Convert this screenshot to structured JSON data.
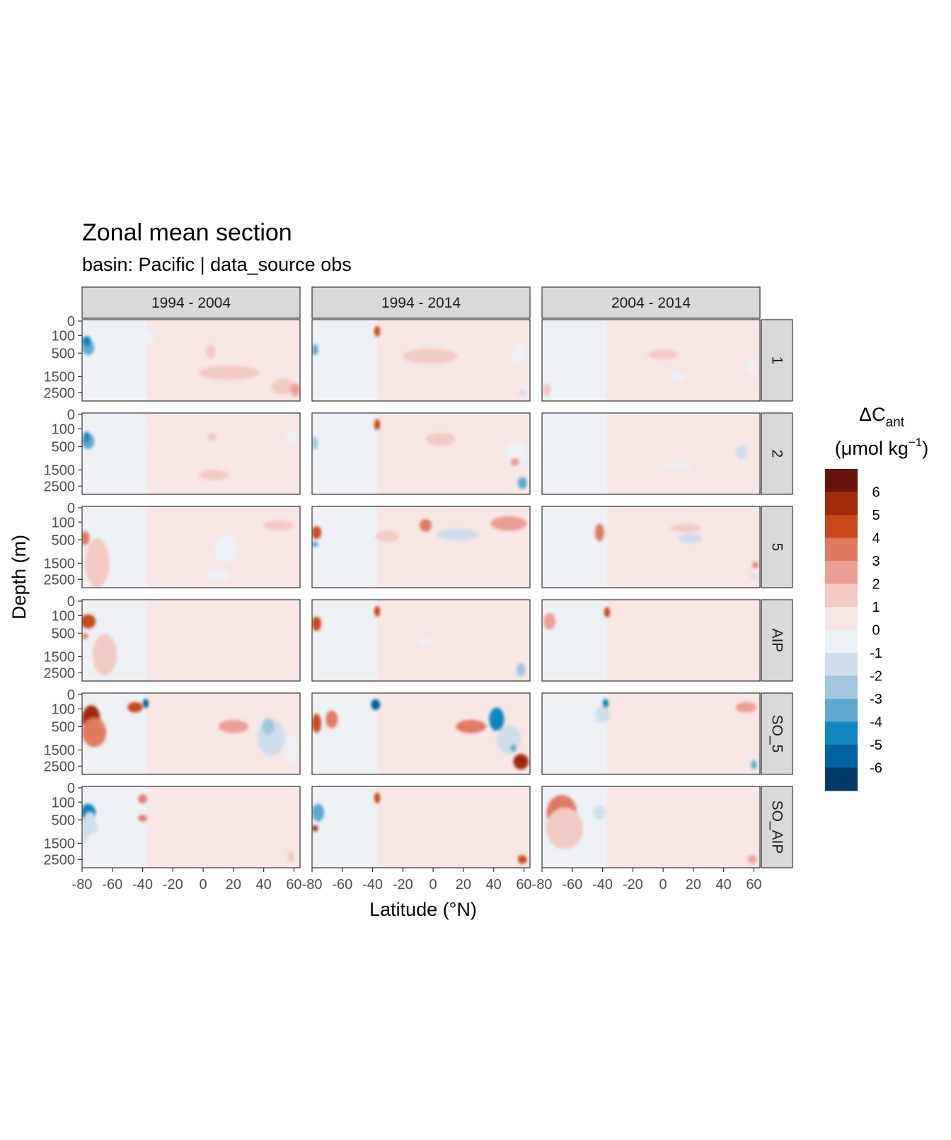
{
  "chart_data": {
    "type": "heatmap",
    "title": "Zonal mean section",
    "subtitle": "basin: Pacific | data_source obs",
    "xlabel": "Latitude (°N)",
    "ylabel": "Depth (m)",
    "x_ticks": [
      "-80",
      "-60",
      "-40",
      "-20",
      "0",
      "20",
      "40",
      "60"
    ],
    "x_tick_values": [
      -80,
      -60,
      -40,
      -20,
      0,
      20,
      40,
      60
    ],
    "xlim": [
      -80,
      64
    ],
    "y_ticks": [
      "0",
      "100",
      "500",
      "1500",
      "2500"
    ],
    "y_tick_values": [
      0,
      100,
      500,
      1500,
      2500
    ],
    "ylim": [
      0,
      3000
    ],
    "y_scale": "square-root, reversed",
    "columns": [
      "1994 - 2004",
      "1994 - 2014",
      "2004 - 2014"
    ],
    "rows": [
      "1",
      "2",
      "5",
      "AIP",
      "SO_5",
      "SO_AIP"
    ],
    "legend": {
      "title_main": "ΔC",
      "title_sub": "ant",
      "unit_prefix": "(μmol kg",
      "unit_sup": "−1",
      "unit_suffix": ")",
      "position": "right",
      "labels": [
        "6",
        "5",
        "4",
        "3",
        "2",
        "1",
        "0",
        "-1",
        "-2",
        "-3",
        "-4",
        "-5",
        "-6"
      ],
      "colors": [
        "#67130a",
        "#a02a0b",
        "#c8481a",
        "#e07a63",
        "#eca095",
        "#f3c9c3",
        "#f8e7e5",
        "#eef2f6",
        "#cfdeec",
        "#a1c6de",
        "#5fa8cf",
        "#1086c0",
        "#00629e",
        "#003a66"
      ]
    },
    "features": [
      {
        "panel": [
          0,
          0
        ],
        "lat": -76,
        "depth": 350,
        "rx": 4,
        "ry": 180,
        "level": -4
      },
      {
        "panel": [
          0,
          0
        ],
        "lat": -77,
        "depth": 200,
        "rx": 3,
        "ry": 100,
        "level": -5
      },
      {
        "panel": [
          0,
          0
        ],
        "lat": -63,
        "depth": 250,
        "rx": 5,
        "ry": 150,
        "level": -1
      },
      {
        "panel": [
          0,
          0
        ],
        "lat": -37,
        "depth": 120,
        "rx": 5,
        "ry": 80,
        "level": -1
      },
      {
        "panel": [
          0,
          0
        ],
        "lat": 17,
        "depth": 1300,
        "rx": 20,
        "ry": 350,
        "level": 1
      },
      {
        "panel": [
          0,
          0
        ],
        "lat": 53,
        "depth": 2100,
        "rx": 8,
        "ry": 500,
        "level": 1
      },
      {
        "panel": [
          0,
          0
        ],
        "lat": 61,
        "depth": 2300,
        "rx": 3,
        "ry": 450,
        "level": 2
      },
      {
        "panel": [
          0,
          0
        ],
        "lat": 5,
        "depth": 450,
        "rx": 3,
        "ry": 200,
        "level": 1
      },
      {
        "panel": [
          0,
          1
        ],
        "lat": -78,
        "depth": 400,
        "rx": 2,
        "ry": 150,
        "level": -4
      },
      {
        "panel": [
          0,
          1
        ],
        "lat": -37,
        "depth": 50,
        "rx": 2,
        "ry": 45,
        "level": 4
      },
      {
        "panel": [
          0,
          1
        ],
        "lat": -2,
        "depth": 600,
        "rx": 18,
        "ry": 250,
        "level": 1
      },
      {
        "panel": [
          0,
          1
        ],
        "lat": 57,
        "depth": 500,
        "rx": 5,
        "ry": 300,
        "level": -1
      },
      {
        "panel": [
          0,
          1
        ],
        "lat": 59,
        "depth": 2500,
        "rx": 2,
        "ry": 200,
        "level": -2
      },
      {
        "panel": [
          0,
          2
        ],
        "lat": 0,
        "depth": 550,
        "rx": 10,
        "ry": 150,
        "level": 1
      },
      {
        "panel": [
          0,
          2
        ],
        "lat": 10,
        "depth": 1500,
        "rx": 5,
        "ry": 200,
        "level": -1
      },
      {
        "panel": [
          0,
          2
        ],
        "lat": 58,
        "depth": 1000,
        "rx": 3,
        "ry": 300,
        "level": -1
      },
      {
        "panel": [
          0,
          2
        ],
        "lat": -77,
        "depth": 2300,
        "rx": 3,
        "ry": 400,
        "level": 1
      },
      {
        "panel": [
          1,
          0
        ],
        "lat": -76,
        "depth": 350,
        "rx": 4,
        "ry": 200,
        "level": -4
      },
      {
        "panel": [
          1,
          0
        ],
        "lat": -77,
        "depth": 250,
        "rx": 2,
        "ry": 120,
        "level": -5
      },
      {
        "panel": [
          1,
          0
        ],
        "lat": -62,
        "depth": 250,
        "rx": 6,
        "ry": 150,
        "level": -1
      },
      {
        "panel": [
          1,
          0
        ],
        "lat": -40,
        "depth": 200,
        "rx": 4,
        "ry": 120,
        "level": -1
      },
      {
        "panel": [
          1,
          0
        ],
        "lat": 7,
        "depth": 1800,
        "rx": 10,
        "ry": 300,
        "level": 1
      },
      {
        "panel": [
          1,
          0
        ],
        "lat": 6,
        "depth": 250,
        "rx": 3,
        "ry": 80,
        "level": 1
      },
      {
        "panel": [
          1,
          0
        ],
        "lat": 58,
        "depth": 250,
        "rx": 3,
        "ry": 150,
        "level": -1
      },
      {
        "panel": [
          1,
          1
        ],
        "lat": -78,
        "depth": 400,
        "rx": 2,
        "ry": 180,
        "level": -3
      },
      {
        "panel": [
          1,
          1
        ],
        "lat": -37,
        "depth": 50,
        "rx": 2,
        "ry": 45,
        "level": 4
      },
      {
        "panel": [
          1,
          1
        ],
        "lat": 5,
        "depth": 300,
        "rx": 10,
        "ry": 150,
        "level": 1
      },
      {
        "panel": [
          1,
          1
        ],
        "lat": 55,
        "depth": 800,
        "rx": 7,
        "ry": 500,
        "level": -1
      },
      {
        "panel": [
          1,
          1
        ],
        "lat": 59,
        "depth": 2300,
        "rx": 3,
        "ry": 400,
        "level": -4
      },
      {
        "panel": [
          1,
          1
        ],
        "lat": 54,
        "depth": 1100,
        "rx": 3,
        "ry": 200,
        "level": 2
      },
      {
        "panel": [
          1,
          2
        ],
        "lat": 10,
        "depth": 1300,
        "rx": 10,
        "ry": 100,
        "level": -1
      },
      {
        "panel": [
          1,
          2
        ],
        "lat": 52,
        "depth": 700,
        "rx": 4,
        "ry": 250,
        "level": -2
      },
      {
        "panel": [
          1,
          2
        ],
        "lat": -72,
        "depth": 400,
        "rx": 3,
        "ry": 300,
        "level": -1
      },
      {
        "panel": [
          2,
          0
        ],
        "lat": -78,
        "depth": 450,
        "rx": 3,
        "ry": 200,
        "level": 3
      },
      {
        "panel": [
          2,
          0
        ],
        "lat": -70,
        "depth": 1500,
        "rx": 8,
        "ry": 1200,
        "level": 1
      },
      {
        "panel": [
          2,
          0
        ],
        "lat": -55,
        "depth": 400,
        "rx": 4,
        "ry": 250,
        "level": -1
      },
      {
        "panel": [
          2,
          0
        ],
        "lat": 15,
        "depth": 800,
        "rx": 8,
        "ry": 500,
        "level": -1
      },
      {
        "panel": [
          2,
          0
        ],
        "lat": 10,
        "depth": 2200,
        "rx": 8,
        "ry": 400,
        "level": -1
      },
      {
        "panel": [
          2,
          0
        ],
        "lat": 50,
        "depth": 150,
        "rx": 10,
        "ry": 80,
        "level": 1
      },
      {
        "panel": [
          2,
          1
        ],
        "lat": -77,
        "depth": 300,
        "rx": 3,
        "ry": 150,
        "level": 4
      },
      {
        "panel": [
          2,
          1
        ],
        "lat": -78,
        "depth": 650,
        "rx": 2,
        "ry": 80,
        "level": -4
      },
      {
        "panel": [
          2,
          1
        ],
        "lat": -40,
        "depth": 120,
        "rx": 4,
        "ry": 80,
        "level": -1
      },
      {
        "panel": [
          2,
          1
        ],
        "lat": -30,
        "depth": 400,
        "rx": 8,
        "ry": 150,
        "level": 1
      },
      {
        "panel": [
          2,
          1
        ],
        "lat": 16,
        "depth": 350,
        "rx": 14,
        "ry": 150,
        "level": -2
      },
      {
        "panel": [
          2,
          1
        ],
        "lat": 50,
        "depth": 120,
        "rx": 12,
        "ry": 100,
        "level": 2
      },
      {
        "panel": [
          2,
          1
        ],
        "lat": -5,
        "depth": 150,
        "rx": 4,
        "ry": 100,
        "level": 3
      },
      {
        "panel": [
          2,
          2
        ],
        "lat": -42,
        "depth": 300,
        "rx": 3,
        "ry": 200,
        "level": 3
      },
      {
        "panel": [
          2,
          2
        ],
        "lat": 18,
        "depth": 450,
        "rx": 8,
        "ry": 150,
        "level": -2
      },
      {
        "panel": [
          2,
          2
        ],
        "lat": 15,
        "depth": 200,
        "rx": 10,
        "ry": 80,
        "level": 1
      },
      {
        "panel": [
          2,
          2
        ],
        "lat": 60,
        "depth": 2300,
        "rx": 2,
        "ry": 150,
        "level": -2
      },
      {
        "panel": [
          2,
          2
        ],
        "lat": 61,
        "depth": 1600,
        "rx": 2,
        "ry": 100,
        "level": 3
      },
      {
        "panel": [
          3,
          0
        ],
        "lat": -76,
        "depth": 200,
        "rx": 5,
        "ry": 130,
        "level": 4
      },
      {
        "panel": [
          3,
          0
        ],
        "lat": -78,
        "depth": 600,
        "rx": 2,
        "ry": 100,
        "level": 3
      },
      {
        "panel": [
          3,
          0
        ],
        "lat": -65,
        "depth": 1400,
        "rx": 8,
        "ry": 1000,
        "level": 1
      },
      {
        "panel": [
          3,
          1
        ],
        "lat": -77,
        "depth": 250,
        "rx": 3,
        "ry": 150,
        "level": 4
      },
      {
        "panel": [
          3,
          1
        ],
        "lat": -37,
        "depth": 50,
        "rx": 2,
        "ry": 45,
        "level": 4
      },
      {
        "panel": [
          3,
          1
        ],
        "lat": -5,
        "depth": 800,
        "rx": 4,
        "ry": 150,
        "level": -1
      },
      {
        "panel": [
          3,
          1
        ],
        "lat": 58,
        "depth": 2300,
        "rx": 3,
        "ry": 450,
        "level": -3
      },
      {
        "panel": [
          3,
          2
        ],
        "lat": -75,
        "depth": 200,
        "rx": 4,
        "ry": 150,
        "level": 2
      },
      {
        "panel": [
          3,
          2
        ],
        "lat": -37,
        "depth": 60,
        "rx": 2,
        "ry": 50,
        "level": 4
      },
      {
        "panel": [
          3,
          2
        ],
        "lat": -45,
        "depth": 300,
        "rx": 3,
        "ry": 200,
        "level": -1
      },
      {
        "panel": [
          4,
          0
        ],
        "lat": -74,
        "depth": 300,
        "rx": 6,
        "ry": 280,
        "level": 5
      },
      {
        "panel": [
          4,
          0
        ],
        "lat": -72,
        "depth": 700,
        "rx": 8,
        "ry": 500,
        "level": 3
      },
      {
        "panel": [
          4,
          0
        ],
        "lat": -45,
        "depth": 80,
        "rx": 5,
        "ry": 60,
        "level": 4
      },
      {
        "panel": [
          4,
          0
        ],
        "lat": -38,
        "depth": 40,
        "rx": 2,
        "ry": 35,
        "level": -6
      },
      {
        "panel": [
          4,
          0
        ],
        "lat": 20,
        "depth": 500,
        "rx": 10,
        "ry": 200,
        "level": 2
      },
      {
        "panel": [
          4,
          0
        ],
        "lat": 45,
        "depth": 900,
        "rx": 9,
        "ry": 700,
        "level": -2
      },
      {
        "panel": [
          4,
          0
        ],
        "lat": 43,
        "depth": 500,
        "rx": 4,
        "ry": 250,
        "level": -3
      },
      {
        "panel": [
          4,
          0
        ],
        "lat": 58,
        "depth": 1500,
        "rx": 4,
        "ry": 800,
        "level": -1
      },
      {
        "panel": [
          4,
          1
        ],
        "lat": -77,
        "depth": 400,
        "rx": 3,
        "ry": 250,
        "level": 4
      },
      {
        "panel": [
          4,
          1
        ],
        "lat": -67,
        "depth": 300,
        "rx": 4,
        "ry": 200,
        "level": 3
      },
      {
        "panel": [
          4,
          1
        ],
        "lat": -50,
        "depth": 600,
        "rx": 6,
        "ry": 400,
        "level": -1
      },
      {
        "panel": [
          4,
          1
        ],
        "lat": -38,
        "depth": 50,
        "rx": 3,
        "ry": 45,
        "level": -6
      },
      {
        "panel": [
          4,
          1
        ],
        "lat": 25,
        "depth": 500,
        "rx": 10,
        "ry": 200,
        "level": 3
      },
      {
        "panel": [
          4,
          1
        ],
        "lat": 42,
        "depth": 300,
        "rx": 5,
        "ry": 250,
        "level": -5
      },
      {
        "panel": [
          4,
          1
        ],
        "lat": 50,
        "depth": 1000,
        "rx": 8,
        "ry": 600,
        "level": -2
      },
      {
        "panel": [
          4,
          1
        ],
        "lat": 58,
        "depth": 2200,
        "rx": 5,
        "ry": 500,
        "level": 5
      },
      {
        "panel": [
          4,
          1
        ],
        "lat": 53,
        "depth": 1400,
        "rx": 2,
        "ry": 200,
        "level": -4
      },
      {
        "panel": [
          4,
          2
        ],
        "lat": -60,
        "depth": 800,
        "rx": 15,
        "ry": 700,
        "level": -1
      },
      {
        "panel": [
          4,
          2
        ],
        "lat": -40,
        "depth": 200,
        "rx": 5,
        "ry": 150,
        "level": -2
      },
      {
        "panel": [
          4,
          2
        ],
        "lat": -38,
        "depth": 40,
        "rx": 2,
        "ry": 35,
        "level": -5
      },
      {
        "panel": [
          4,
          2
        ],
        "lat": 60,
        "depth": 2400,
        "rx": 2,
        "ry": 300,
        "level": -4
      },
      {
        "panel": [
          4,
          2
        ],
        "lat": 55,
        "depth": 80,
        "rx": 7,
        "ry": 60,
        "level": 2
      },
      {
        "panel": [
          5,
          0
        ],
        "lat": -76,
        "depth": 300,
        "rx": 5,
        "ry": 200,
        "level": -5
      },
      {
        "panel": [
          5,
          0
        ],
        "lat": -75,
        "depth": 900,
        "rx": 5,
        "ry": 700,
        "level": -2
      },
      {
        "panel": [
          5,
          0
        ],
        "lat": -72,
        "depth": 1800,
        "rx": 6,
        "ry": 900,
        "level": -1
      },
      {
        "panel": [
          5,
          0
        ],
        "lat": -40,
        "depth": 60,
        "rx": 3,
        "ry": 45,
        "level": 3
      },
      {
        "panel": [
          5,
          0
        ],
        "lat": -40,
        "depth": 450,
        "rx": 3,
        "ry": 100,
        "level": 3
      },
      {
        "panel": [
          5,
          0
        ],
        "lat": 58,
        "depth": 2300,
        "rx": 2,
        "ry": 400,
        "level": 1
      },
      {
        "panel": [
          5,
          1
        ],
        "lat": -76,
        "depth": 300,
        "rx": 4,
        "ry": 200,
        "level": -4
      },
      {
        "panel": [
          5,
          1
        ],
        "lat": -78,
        "depth": 800,
        "rx": 2,
        "ry": 120,
        "level": 5
      },
      {
        "panel": [
          5,
          1
        ],
        "lat": -37,
        "depth": 50,
        "rx": 2,
        "ry": 45,
        "level": 4
      },
      {
        "panel": [
          5,
          1
        ],
        "lat": 59,
        "depth": 2500,
        "rx": 3,
        "ry": 300,
        "level": 4
      },
      {
        "panel": [
          5,
          2
        ],
        "lat": -67,
        "depth": 300,
        "rx": 10,
        "ry": 300,
        "level": 3
      },
      {
        "panel": [
          5,
          2
        ],
        "lat": -65,
        "depth": 800,
        "rx": 12,
        "ry": 700,
        "level": 1
      },
      {
        "panel": [
          5,
          2
        ],
        "lat": -42,
        "depth": 300,
        "rx": 4,
        "ry": 150,
        "level": -2
      },
      {
        "panel": [
          5,
          2
        ],
        "lat": 59,
        "depth": 2500,
        "rx": 3,
        "ry": 300,
        "level": 2
      }
    ]
  }
}
